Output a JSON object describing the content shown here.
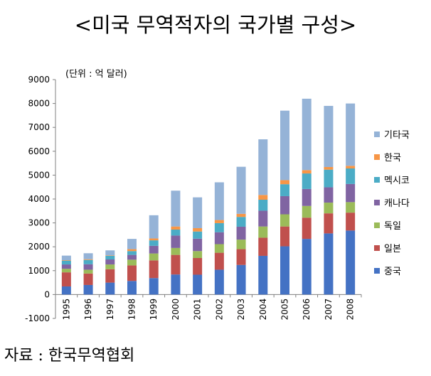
{
  "title": "<미국 무역적자의 국가별 구성>",
  "source": "자료 : 한국무역협회",
  "chart_data": {
    "type": "bar",
    "stacked": true,
    "unit_label": "(단위 : 억 달러)",
    "categories": [
      "1995",
      "1996",
      "1997",
      "1998",
      "1999",
      "2000",
      "2001",
      "2002",
      "2003",
      "2004",
      "2005",
      "2006",
      "2007",
      "2008"
    ],
    "ylim": [
      -1000,
      9000
    ],
    "yticks": [
      "-1000",
      "0",
      "1000",
      "2000",
      "3000",
      "4000",
      "5000",
      "6000",
      "7000",
      "8000",
      "9000"
    ],
    "legend_position": "right",
    "series": [
      {
        "name": "중국",
        "color": "#4472C4",
        "values": [
          340,
          400,
          500,
          570,
          690,
          840,
          830,
          1040,
          1240,
          1620,
          2020,
          2330,
          2560,
          2680
        ]
      },
      {
        "name": "일본",
        "color": "#C0504D",
        "values": [
          590,
          480,
          560,
          650,
          740,
          820,
          700,
          710,
          660,
          760,
          830,
          890,
          840,
          750
        ]
      },
      {
        "name": "독일",
        "color": "#9BBB59",
        "values": [
          150,
          160,
          200,
          240,
          290,
          290,
          290,
          360,
          400,
          470,
          510,
          490,
          450,
          440
        ]
      },
      {
        "name": "캐나다",
        "color": "#8064A2",
        "values": [
          180,
          230,
          210,
          200,
          320,
          520,
          520,
          500,
          540,
          660,
          760,
          710,
          640,
          760
        ]
      },
      {
        "name": "멕시코",
        "color": "#4BACC6",
        "values": [
          160,
          180,
          150,
          160,
          230,
          250,
          300,
          380,
          410,
          460,
          500,
          650,
          740,
          650
        ]
      },
      {
        "name": "한국",
        "color": "#F79646",
        "values": [
          20,
          30,
          20,
          80,
          80,
          130,
          140,
          130,
          130,
          200,
          170,
          140,
          110,
          110
        ]
      },
      {
        "name": "기타국",
        "color": "#95B3D7",
        "values": [
          190,
          250,
          210,
          430,
          970,
          1500,
          1290,
          1580,
          1970,
          2330,
          2910,
          2990,
          2560,
          2610
        ]
      }
    ]
  }
}
